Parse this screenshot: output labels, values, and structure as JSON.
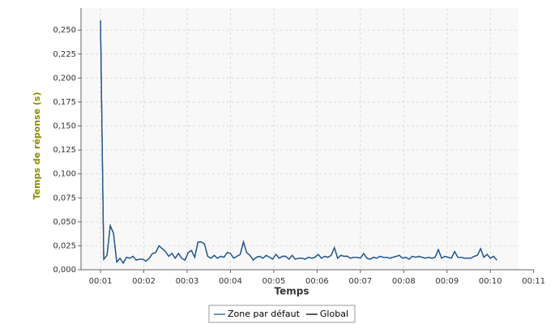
{
  "chart_data": {
    "type": "line",
    "x_label": "Temps",
    "y_label": "Temps de réponse (s)",
    "x": [
      60,
      64.5,
      69,
      73.5,
      78,
      82.5,
      87,
      91.5,
      96,
      100.5,
      105,
      109.5,
      114,
      118.5,
      123,
      127.5,
      132,
      136.5,
      141,
      145.5,
      150,
      154.5,
      159,
      163.5,
      168,
      172.5,
      177,
      181.5,
      186,
      190.5,
      195,
      199.5,
      204,
      208.5,
      213,
      217.5,
      222,
      226.5,
      231,
      235.5,
      240,
      244.5,
      249,
      253.5,
      258,
      262.5,
      267,
      271.5,
      276,
      280.5,
      285,
      289.5,
      294,
      298.5,
      303,
      307.5,
      312,
      316.5,
      321,
      325.5,
      330,
      334.5,
      339,
      343.5,
      348,
      352.5,
      357,
      361.5,
      366,
      370.5,
      375,
      379.5,
      384,
      388.5,
      393,
      397.5,
      402,
      406.5,
      411,
      415.5,
      420,
      424.5,
      429,
      433.5,
      438,
      442.5,
      447,
      451.5,
      456,
      460.5,
      465,
      469.5,
      474,
      478.5,
      483,
      487.5,
      492,
      496.5,
      501,
      505.5,
      510,
      514.5,
      519,
      523.5,
      528,
      532.5,
      537,
      541.5,
      546,
      550.5,
      555,
      559.5,
      564,
      568.5,
      573,
      577.5,
      582,
      586.5,
      591,
      595.5,
      600,
      604.5,
      609
    ],
    "series": [
      {
        "name": "Global",
        "color": "#000000",
        "values": [
          0.26,
          0.011,
          0.015,
          0.046,
          0.038,
          0.008,
          0.012,
          0.007,
          0.013,
          0.012,
          0.014,
          0.01,
          0.011,
          0.011,
          0.009,
          0.012,
          0.017,
          0.018,
          0.025,
          0.022,
          0.019,
          0.014,
          0.017,
          0.012,
          0.017,
          0.012,
          0.01,
          0.018,
          0.02,
          0.013,
          0.029,
          0.029,
          0.027,
          0.014,
          0.012,
          0.015,
          0.012,
          0.014,
          0.013,
          0.018,
          0.017,
          0.012,
          0.014,
          0.016,
          0.029,
          0.018,
          0.015,
          0.01,
          0.013,
          0.014,
          0.012,
          0.015,
          0.013,
          0.011,
          0.016,
          0.012,
          0.014,
          0.014,
          0.011,
          0.015,
          0.011,
          0.012,
          0.012,
          0.011,
          0.013,
          0.012,
          0.013,
          0.016,
          0.012,
          0.014,
          0.013,
          0.015,
          0.023,
          0.012,
          0.015,
          0.014,
          0.014,
          0.012,
          0.013,
          0.013,
          0.012,
          0.017,
          0.012,
          0.011,
          0.013,
          0.012,
          0.014,
          0.013,
          0.013,
          0.012,
          0.013,
          0.014,
          0.015,
          0.012,
          0.013,
          0.011,
          0.014,
          0.013,
          0.014,
          0.013,
          0.012,
          0.013,
          0.012,
          0.013,
          0.021,
          0.012,
          0.014,
          0.013,
          0.012,
          0.019,
          0.013,
          0.013,
          0.012,
          0.012,
          0.012,
          0.014,
          0.015,
          0.022,
          0.013,
          0.016,
          0.012,
          0.014,
          0.01
        ]
      },
      {
        "name": "Zone par défaut",
        "color": "#1f5b99",
        "values": [
          0.26,
          0.011,
          0.015,
          0.046,
          0.038,
          0.008,
          0.012,
          0.007,
          0.013,
          0.012,
          0.014,
          0.01,
          0.011,
          0.011,
          0.009,
          0.012,
          0.017,
          0.018,
          0.025,
          0.022,
          0.019,
          0.014,
          0.017,
          0.012,
          0.017,
          0.012,
          0.01,
          0.018,
          0.02,
          0.013,
          0.029,
          0.029,
          0.027,
          0.014,
          0.012,
          0.015,
          0.012,
          0.014,
          0.013,
          0.018,
          0.017,
          0.012,
          0.014,
          0.016,
          0.029,
          0.018,
          0.015,
          0.01,
          0.013,
          0.014,
          0.012,
          0.015,
          0.013,
          0.011,
          0.016,
          0.012,
          0.014,
          0.014,
          0.011,
          0.015,
          0.011,
          0.012,
          0.012,
          0.011,
          0.013,
          0.012,
          0.013,
          0.016,
          0.012,
          0.014,
          0.013,
          0.015,
          0.023,
          0.012,
          0.015,
          0.014,
          0.014,
          0.012,
          0.013,
          0.013,
          0.012,
          0.017,
          0.012,
          0.011,
          0.013,
          0.012,
          0.014,
          0.013,
          0.013,
          0.012,
          0.013,
          0.014,
          0.015,
          0.012,
          0.013,
          0.011,
          0.014,
          0.013,
          0.014,
          0.013,
          0.012,
          0.013,
          0.012,
          0.013,
          0.021,
          0.012,
          0.014,
          0.013,
          0.012,
          0.019,
          0.013,
          0.013,
          0.012,
          0.012,
          0.012,
          0.014,
          0.015,
          0.022,
          0.013,
          0.016,
          0.012,
          0.014,
          0.01
        ]
      }
    ],
    "legend_order": [
      1,
      0
    ],
    "xlim": [
      33,
      639
    ],
    "ylim": [
      0,
      0.273
    ],
    "xticks": [
      {
        "value": 60,
        "label": "00:01"
      },
      {
        "value": 120,
        "label": "00:02"
      },
      {
        "value": 180,
        "label": "00:03"
      },
      {
        "value": 240,
        "label": "00:04"
      },
      {
        "value": 300,
        "label": "00:05"
      },
      {
        "value": 360,
        "label": "00:06"
      },
      {
        "value": 420,
        "label": "00:07"
      },
      {
        "value": 480,
        "label": "00:08"
      },
      {
        "value": 540,
        "label": "00:09"
      },
      {
        "value": 600,
        "label": "00:10"
      },
      {
        "value": 660,
        "label": "00:11"
      }
    ],
    "yticks": [
      {
        "value": 0,
        "label": "0,000"
      },
      {
        "value": 0.025,
        "label": "0,025"
      },
      {
        "value": 0.05,
        "label": "0,050"
      },
      {
        "value": 0.075,
        "label": "0,075"
      },
      {
        "value": 0.1,
        "label": "0,100"
      },
      {
        "value": 0.125,
        "label": "0,125"
      },
      {
        "value": 0.15,
        "label": "0,150"
      },
      {
        "value": 0.175,
        "label": "0,175"
      },
      {
        "value": 0.2,
        "label": "0,200"
      },
      {
        "value": 0.225,
        "label": "0,225"
      },
      {
        "value": 0.25,
        "label": "0,250"
      }
    ],
    "grid": true,
    "legend": "bottom"
  }
}
